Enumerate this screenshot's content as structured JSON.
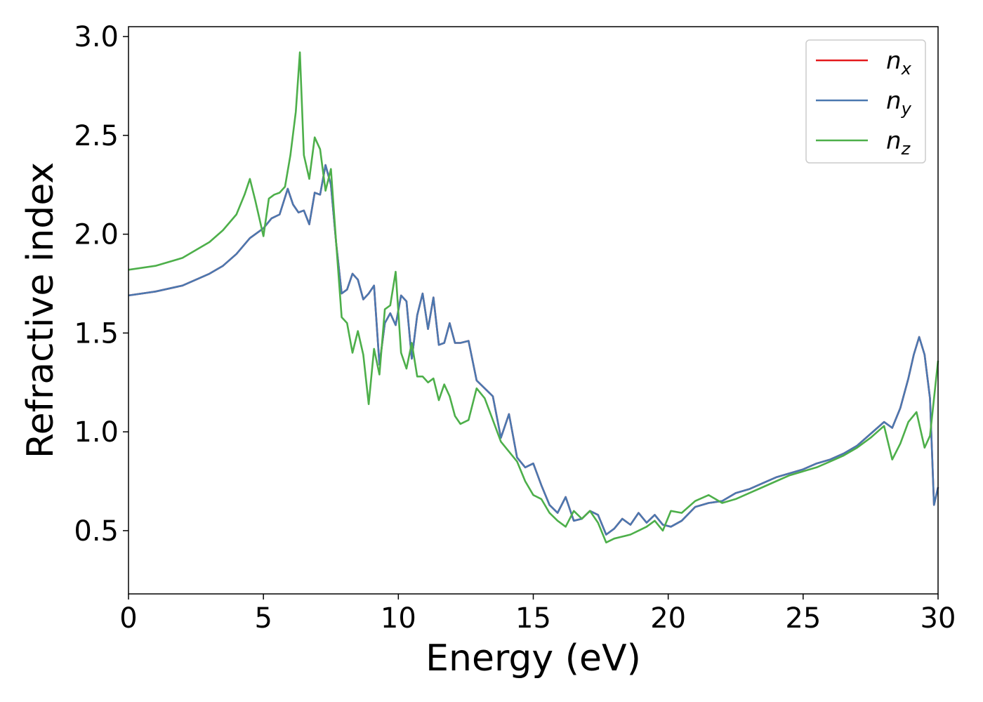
{
  "chart_data": {
    "type": "line",
    "title": "",
    "xlabel": "Energy (eV)",
    "ylabel": "Refractive index",
    "xlim": [
      0,
      30
    ],
    "ylim": [
      0.18,
      3.05
    ],
    "xticks": [
      0,
      5,
      10,
      15,
      20,
      25,
      30
    ],
    "xtick_labels": [
      "0",
      "5",
      "10",
      "15",
      "20",
      "25",
      "30"
    ],
    "yticks": [
      0.5,
      1.0,
      1.5,
      2.0,
      2.5,
      3.0
    ],
    "ytick_labels": [
      "0.5",
      "1.0",
      "1.5",
      "2.0",
      "2.5",
      "3.0"
    ],
    "grid": false,
    "legend_position": "top-right",
    "legend_order": [
      "n_x",
      "n_y",
      "n_z"
    ],
    "series": [
      {
        "name": "n_x",
        "label_main": "n",
        "label_sub": "x",
        "color": "#e41a1c",
        "x": [
          0,
          1,
          2,
          3,
          3.5,
          4,
          4.5,
          5,
          5.3,
          5.6,
          5.9,
          6.1,
          6.3,
          6.5,
          6.7,
          6.9,
          7.1,
          7.3,
          7.5,
          7.7,
          7.9,
          8.1,
          8.3,
          8.5,
          8.7,
          8.9,
          9.1,
          9.3,
          9.5,
          9.7,
          9.9,
          10.1,
          10.3,
          10.5,
          10.7,
          10.9,
          11.1,
          11.3,
          11.5,
          11.7,
          11.9,
          12.1,
          12.3,
          12.6,
          12.9,
          13.2,
          13.5,
          13.8,
          14.1,
          14.4,
          14.7,
          15.0,
          15.3,
          15.6,
          15.9,
          16.2,
          16.5,
          16.8,
          17.1,
          17.4,
          17.7,
          18.0,
          18.3,
          18.6,
          18.9,
          19.2,
          19.5,
          19.8,
          20.1,
          20.5,
          21.0,
          21.5,
          22.0,
          22.5,
          23.0,
          23.5,
          24.0,
          24.5,
          25.0,
          25.5,
          26.0,
          26.5,
          27.0,
          27.5,
          28.0,
          28.3,
          28.6,
          28.9,
          29.1,
          29.3,
          29.5,
          29.7,
          29.85,
          30.0
        ],
        "y": [
          1.69,
          1.71,
          1.74,
          1.8,
          1.84,
          1.9,
          1.98,
          2.03,
          2.08,
          2.1,
          2.23,
          2.15,
          2.11,
          2.12,
          2.05,
          2.21,
          2.2,
          2.35,
          2.25,
          1.95,
          1.7,
          1.72,
          1.8,
          1.77,
          1.67,
          1.7,
          1.74,
          1.34,
          1.55,
          1.6,
          1.54,
          1.69,
          1.66,
          1.37,
          1.59,
          1.7,
          1.52,
          1.68,
          1.44,
          1.45,
          1.55,
          1.45,
          1.45,
          1.46,
          1.26,
          1.22,
          1.18,
          0.97,
          1.09,
          0.87,
          0.82,
          0.84,
          0.73,
          0.63,
          0.59,
          0.67,
          0.55,
          0.56,
          0.6,
          0.58,
          0.48,
          0.51,
          0.56,
          0.53,
          0.59,
          0.54,
          0.58,
          0.53,
          0.52,
          0.55,
          0.62,
          0.64,
          0.65,
          0.69,
          0.71,
          0.74,
          0.77,
          0.79,
          0.81,
          0.84,
          0.86,
          0.89,
          0.93,
          0.99,
          1.05,
          1.02,
          1.12,
          1.27,
          1.39,
          1.48,
          1.39,
          1.17,
          0.63,
          0.72
        ]
      },
      {
        "name": "n_y",
        "label_main": "n",
        "label_sub": "y",
        "color": "#4a78b0",
        "x": [
          0,
          1,
          2,
          3,
          3.5,
          4,
          4.5,
          5,
          5.3,
          5.6,
          5.9,
          6.1,
          6.3,
          6.5,
          6.7,
          6.9,
          7.1,
          7.3,
          7.5,
          7.7,
          7.9,
          8.1,
          8.3,
          8.5,
          8.7,
          8.9,
          9.1,
          9.3,
          9.5,
          9.7,
          9.9,
          10.1,
          10.3,
          10.5,
          10.7,
          10.9,
          11.1,
          11.3,
          11.5,
          11.7,
          11.9,
          12.1,
          12.3,
          12.6,
          12.9,
          13.2,
          13.5,
          13.8,
          14.1,
          14.4,
          14.7,
          15.0,
          15.3,
          15.6,
          15.9,
          16.2,
          16.5,
          16.8,
          17.1,
          17.4,
          17.7,
          18.0,
          18.3,
          18.6,
          18.9,
          19.2,
          19.5,
          19.8,
          20.1,
          20.5,
          21.0,
          21.5,
          22.0,
          22.5,
          23.0,
          23.5,
          24.0,
          24.5,
          25.0,
          25.5,
          26.0,
          26.5,
          27.0,
          27.5,
          28.0,
          28.3,
          28.6,
          28.9,
          29.1,
          29.3,
          29.5,
          29.7,
          29.85,
          30.0
        ],
        "y": [
          1.69,
          1.71,
          1.74,
          1.8,
          1.84,
          1.9,
          1.98,
          2.03,
          2.08,
          2.1,
          2.23,
          2.15,
          2.11,
          2.12,
          2.05,
          2.21,
          2.2,
          2.35,
          2.25,
          1.95,
          1.7,
          1.72,
          1.8,
          1.77,
          1.67,
          1.7,
          1.74,
          1.34,
          1.55,
          1.6,
          1.54,
          1.69,
          1.66,
          1.37,
          1.59,
          1.7,
          1.52,
          1.68,
          1.44,
          1.45,
          1.55,
          1.45,
          1.45,
          1.46,
          1.26,
          1.22,
          1.18,
          0.97,
          1.09,
          0.87,
          0.82,
          0.84,
          0.73,
          0.63,
          0.59,
          0.67,
          0.55,
          0.56,
          0.6,
          0.58,
          0.48,
          0.51,
          0.56,
          0.53,
          0.59,
          0.54,
          0.58,
          0.53,
          0.52,
          0.55,
          0.62,
          0.64,
          0.65,
          0.69,
          0.71,
          0.74,
          0.77,
          0.79,
          0.81,
          0.84,
          0.86,
          0.89,
          0.93,
          0.99,
          1.05,
          1.02,
          1.12,
          1.27,
          1.39,
          1.48,
          1.39,
          1.17,
          0.63,
          0.72
        ]
      },
      {
        "name": "n_z",
        "label_main": "n",
        "label_sub": "z",
        "color": "#4daf4a",
        "x": [
          0,
          1,
          2,
          3,
          3.5,
          4,
          4.3,
          4.5,
          4.7,
          5.0,
          5.2,
          5.4,
          5.6,
          5.8,
          6.0,
          6.2,
          6.35,
          6.5,
          6.7,
          6.9,
          7.1,
          7.3,
          7.5,
          7.7,
          7.9,
          8.1,
          8.3,
          8.5,
          8.7,
          8.9,
          9.1,
          9.3,
          9.5,
          9.7,
          9.9,
          10.1,
          10.3,
          10.5,
          10.7,
          10.9,
          11.1,
          11.3,
          11.5,
          11.7,
          11.9,
          12.1,
          12.3,
          12.6,
          12.9,
          13.2,
          13.5,
          13.8,
          14.1,
          14.4,
          14.7,
          15.0,
          15.3,
          15.6,
          15.9,
          16.2,
          16.5,
          16.8,
          17.1,
          17.4,
          17.7,
          18.0,
          18.3,
          18.6,
          18.9,
          19.2,
          19.5,
          19.8,
          20.1,
          20.5,
          21.0,
          21.5,
          22.0,
          22.5,
          23.0,
          23.5,
          24.0,
          24.5,
          25.0,
          25.5,
          26.0,
          26.5,
          27.0,
          27.5,
          28.0,
          28.3,
          28.6,
          28.9,
          29.2,
          29.5,
          29.7,
          30.0
        ],
        "y": [
          1.82,
          1.84,
          1.88,
          1.96,
          2.02,
          2.1,
          2.2,
          2.28,
          2.17,
          1.99,
          2.18,
          2.2,
          2.21,
          2.24,
          2.4,
          2.62,
          2.92,
          2.4,
          2.28,
          2.49,
          2.43,
          2.22,
          2.33,
          1.95,
          1.58,
          1.55,
          1.4,
          1.51,
          1.39,
          1.14,
          1.42,
          1.29,
          1.62,
          1.64,
          1.81,
          1.4,
          1.32,
          1.45,
          1.28,
          1.28,
          1.25,
          1.27,
          1.16,
          1.24,
          1.18,
          1.08,
          1.04,
          1.06,
          1.22,
          1.17,
          1.06,
          0.95,
          0.9,
          0.85,
          0.75,
          0.68,
          0.66,
          0.59,
          0.55,
          0.52,
          0.6,
          0.56,
          0.6,
          0.54,
          0.44,
          0.46,
          0.47,
          0.48,
          0.5,
          0.52,
          0.55,
          0.5,
          0.6,
          0.59,
          0.65,
          0.68,
          0.64,
          0.66,
          0.69,
          0.72,
          0.75,
          0.78,
          0.8,
          0.82,
          0.85,
          0.88,
          0.92,
          0.97,
          1.03,
          0.86,
          0.94,
          1.05,
          1.1,
          0.92,
          0.98,
          1.36
        ]
      }
    ]
  }
}
